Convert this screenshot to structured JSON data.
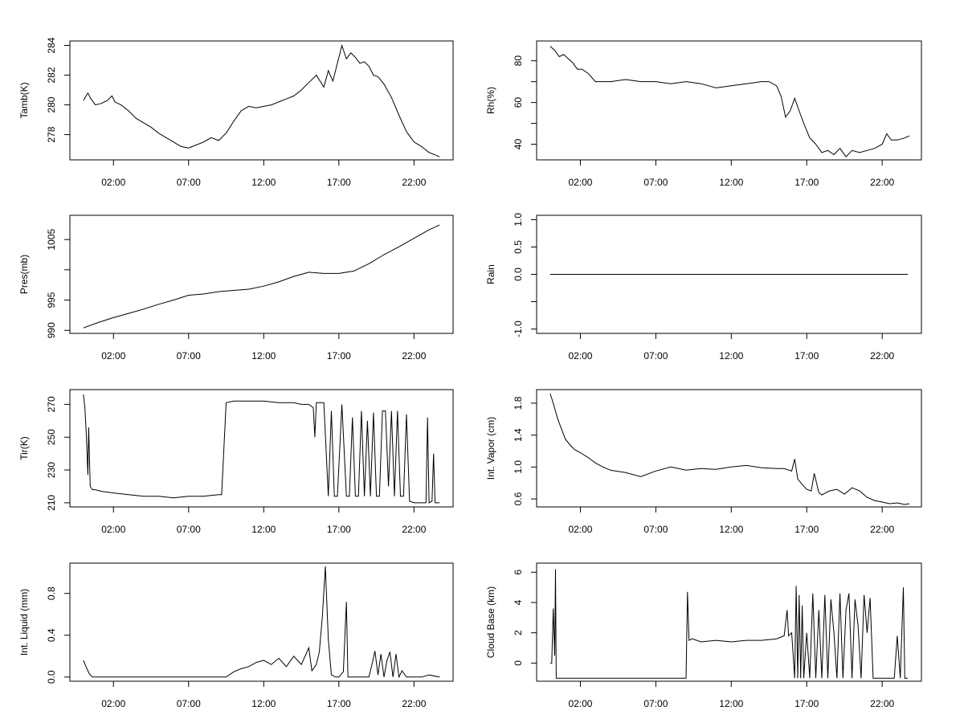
{
  "x_ticks": [
    "02:00",
    "07:00",
    "12:00",
    "17:00",
    "22:00"
  ],
  "chart_data": [
    {
      "id": "tamb",
      "type": "line",
      "ylabel": "Tamb(K)",
      "xlim": [
        -0.9,
        24.6
      ],
      "ylim": [
        276.3,
        284.3
      ],
      "yticks": [
        278,
        280,
        282,
        284
      ],
      "ytick_labels": [
        "278",
        "280",
        "282",
        "284"
      ],
      "series": [
        {
          "name": "Tamb",
          "x": [
            0.0,
            0.3,
            0.5,
            0.8,
            1.2,
            1.6,
            1.9,
            2.1,
            2.5,
            3.0,
            3.5,
            4.0,
            4.5,
            5.0,
            5.5,
            6.0,
            6.5,
            7.0,
            7.5,
            8.0,
            8.5,
            9.0,
            9.5,
            10.0,
            10.5,
            11.0,
            11.5,
            12.0,
            12.5,
            13.0,
            13.5,
            14.0,
            14.5,
            15.0,
            15.5,
            16.0,
            16.3,
            16.6,
            16.9,
            17.2,
            17.5,
            17.8,
            18.1,
            18.4,
            18.7,
            19.0,
            19.3,
            19.6,
            20.0,
            20.5,
            21.0,
            21.5,
            22.0,
            22.5,
            23.0,
            23.5,
            23.7
          ],
          "values": [
            280.3,
            280.8,
            280.4,
            280.0,
            280.1,
            280.3,
            280.6,
            280.2,
            280.0,
            279.6,
            279.1,
            278.8,
            278.5,
            278.1,
            277.8,
            277.5,
            277.2,
            277.1,
            277.3,
            277.5,
            277.8,
            277.6,
            278.1,
            278.9,
            279.6,
            279.9,
            279.8,
            279.9,
            280.0,
            280.2,
            280.4,
            280.6,
            281.0,
            281.5,
            282.0,
            281.2,
            282.3,
            281.6,
            282.8,
            284.0,
            283.1,
            283.5,
            283.2,
            282.8,
            282.9,
            282.6,
            282.0,
            281.9,
            281.4,
            280.5,
            279.3,
            278.2,
            277.5,
            277.2,
            276.8,
            276.6,
            276.5
          ]
        }
      ]
    },
    {
      "id": "rh",
      "type": "line",
      "ylabel": "Rh(%)",
      "xlim": [
        -0.9,
        24.6
      ],
      "ylim": [
        32.5,
        89.5
      ],
      "yticks": [
        40,
        50,
        60,
        70,
        80
      ],
      "ytick_labels": [
        "40",
        "",
        "60",
        "",
        "80"
      ],
      "series": [
        {
          "name": "Rh",
          "x": [
            0.0,
            0.3,
            0.6,
            0.9,
            1.2,
            1.5,
            1.8,
            2.1,
            2.5,
            3.0,
            3.5,
            4.0,
            5.0,
            6.0,
            7.0,
            8.0,
            9.0,
            10.0,
            11.0,
            12.0,
            13.0,
            14.0,
            14.5,
            15.0,
            15.3,
            15.6,
            15.9,
            16.2,
            16.5,
            16.8,
            17.2,
            17.6,
            18.0,
            18.4,
            18.8,
            19.2,
            19.6,
            20.0,
            20.5,
            21.0,
            21.5,
            22.0,
            22.3,
            22.6,
            23.0,
            23.5,
            23.8
          ],
          "values": [
            87,
            85,
            82,
            83,
            81,
            79,
            76,
            76,
            74,
            70,
            70,
            70,
            71,
            70,
            70,
            69,
            70,
            69,
            67,
            68,
            69,
            70,
            70,
            68,
            63,
            53,
            56,
            62,
            56,
            50,
            43,
            40,
            36,
            37,
            35,
            38,
            34,
            37,
            36,
            37,
            38,
            40,
            45,
            42,
            42,
            43,
            44
          ]
        }
      ]
    },
    {
      "id": "pres",
      "type": "line",
      "ylabel": "Pres(mb)",
      "xlim": [
        -0.9,
        24.6
      ],
      "ylim": [
        989.5,
        1009.0
      ],
      "yticks": [
        990,
        995,
        1000,
        1005
      ],
      "ytick_labels": [
        "990",
        "995",
        "",
        "1005"
      ],
      "series": [
        {
          "name": "Pres",
          "x": [
            0.0,
            1.0,
            2.0,
            3.0,
            4.0,
            5.0,
            6.0,
            7.0,
            8.0,
            9.0,
            10.0,
            11.0,
            12.0,
            13.0,
            14.0,
            15.0,
            16.0,
            17.0,
            18.0,
            19.0,
            20.0,
            21.0,
            22.0,
            23.0,
            23.7
          ],
          "values": [
            990.4,
            991.3,
            992.1,
            992.8,
            993.5,
            994.3,
            995.0,
            995.8,
            996.0,
            996.4,
            996.6,
            996.8,
            997.3,
            998.0,
            998.9,
            999.6,
            999.4,
            999.4,
            999.8,
            1001.0,
            1002.5,
            1003.8,
            1005.2,
            1006.6,
            1007.4
          ]
        }
      ]
    },
    {
      "id": "rain",
      "type": "line",
      "ylabel": "Rain",
      "xlim": [
        -0.9,
        24.6
      ],
      "ylim": [
        -1.08,
        1.08
      ],
      "yticks": [
        -1.0,
        -0.5,
        0.0,
        0.5,
        1.0
      ],
      "ytick_labels": [
        "-1.0",
        "",
        "0.0",
        "0.5",
        "1.0"
      ],
      "series": [
        {
          "name": "Rain",
          "x": [
            0.0,
            23.7
          ],
          "values": [
            0.0,
            0.0
          ]
        }
      ]
    },
    {
      "id": "tir",
      "type": "line",
      "ylabel": "Tir(K)",
      "xlim": [
        -0.9,
        24.6
      ],
      "ylim": [
        207.5,
        279.0
      ],
      "yticks": [
        210,
        230,
        250,
        270
      ],
      "ytick_labels": [
        "210",
        "230",
        "250",
        "270"
      ],
      "series": [
        {
          "name": "Tir",
          "x": [
            0.0,
            0.1,
            0.2,
            0.3,
            0.35,
            0.45,
            0.6,
            0.8,
            1.2,
            2.0,
            3.0,
            4.0,
            5.0,
            6.0,
            7.0,
            8.0,
            9.0,
            9.2,
            9.5,
            10.0,
            11.0,
            12.0,
            13.0,
            14.0,
            14.5,
            15.0,
            15.3,
            15.4,
            15.5,
            15.8,
            16.0,
            16.3,
            16.5,
            16.7,
            16.9,
            17.2,
            17.5,
            17.7,
            17.9,
            18.1,
            18.3,
            18.5,
            18.7,
            18.9,
            19.1,
            19.3,
            19.5,
            19.7,
            19.9,
            20.1,
            20.3,
            20.5,
            20.7,
            20.9,
            21.1,
            21.3,
            21.5,
            21.7,
            22.0,
            22.5,
            22.8,
            22.9,
            23.0,
            23.2,
            23.3,
            23.4,
            23.7
          ],
          "values": [
            276,
            268,
            250,
            227,
            256,
            220,
            218,
            218,
            217,
            216,
            215,
            214,
            214,
            213,
            214,
            214,
            215,
            215,
            271,
            272,
            272,
            272,
            271,
            271,
            270,
            270,
            268,
            250,
            271,
            271,
            271,
            214,
            266,
            214,
            214,
            270,
            214,
            214,
            262,
            214,
            214,
            266,
            214,
            260,
            214,
            265,
            214,
            214,
            266,
            266,
            220,
            266,
            214,
            266,
            214,
            214,
            264,
            211,
            210,
            210,
            210,
            262,
            210,
            211,
            240,
            210,
            210
          ]
        }
      ]
    },
    {
      "id": "vapor",
      "type": "line",
      "ylabel": "Int. Vapor (cm)",
      "xlim": [
        -0.9,
        24.6
      ],
      "ylim": [
        0.5,
        1.97
      ],
      "yticks": [
        0.6,
        1.0,
        1.4,
        1.8
      ],
      "ytick_labels": [
        "0.6",
        "1.0",
        "1.4",
        "1.8"
      ],
      "series": [
        {
          "name": "Int. Vapor",
          "x": [
            0.0,
            0.2,
            0.5,
            0.8,
            1.0,
            1.3,
            1.6,
            2.0,
            2.5,
            3.0,
            3.5,
            4.0,
            5.0,
            6.0,
            7.0,
            8.0,
            9.0,
            10.0,
            11.0,
            12.0,
            13.0,
            14.0,
            15.0,
            15.5,
            16.0,
            16.2,
            16.4,
            16.7,
            17.0,
            17.3,
            17.5,
            17.8,
            18.0,
            18.5,
            19.0,
            19.5,
            20.0,
            20.5,
            21.0,
            21.5,
            22.0,
            22.5,
            23.0,
            23.5,
            23.8
          ],
          "values": [
            1.92,
            1.8,
            1.6,
            1.45,
            1.35,
            1.28,
            1.22,
            1.18,
            1.12,
            1.05,
            1.0,
            0.96,
            0.93,
            0.88,
            0.95,
            1.0,
            0.96,
            0.98,
            0.97,
            1.0,
            1.02,
            0.99,
            0.98,
            0.98,
            0.95,
            1.1,
            0.85,
            0.78,
            0.72,
            0.7,
            0.92,
            0.68,
            0.65,
            0.7,
            0.72,
            0.66,
            0.74,
            0.7,
            0.62,
            0.58,
            0.56,
            0.54,
            0.55,
            0.53,
            0.54
          ]
        }
      ]
    },
    {
      "id": "liquid",
      "type": "line",
      "ylabel": "Int. Liquid (mm)",
      "xlim": [
        -0.9,
        24.6
      ],
      "ylim": [
        -0.04,
        1.09
      ],
      "yticks": [
        0.0,
        0.4,
        0.8
      ],
      "ytick_labels": [
        "0.0",
        "0.4",
        "0.8"
      ],
      "series": [
        {
          "name": "Int. Liquid",
          "x": [
            0.0,
            0.2,
            0.4,
            0.6,
            1.0,
            2.0,
            4.0,
            6.0,
            8.0,
            9.0,
            9.5,
            10.0,
            10.5,
            11.0,
            11.5,
            12.0,
            12.5,
            13.0,
            13.5,
            14.0,
            14.5,
            15.0,
            15.2,
            15.5,
            15.7,
            15.9,
            16.1,
            16.3,
            16.5,
            16.8,
            17.0,
            17.3,
            17.5,
            17.6,
            17.8,
            18.0,
            18.5,
            19.0,
            19.2,
            19.4,
            19.6,
            19.8,
            20.0,
            20.2,
            20.4,
            20.6,
            20.8,
            21.0,
            21.2,
            21.5,
            22.0,
            22.5,
            23.0,
            23.7
          ],
          "values": [
            0.16,
            0.09,
            0.03,
            0.0,
            0.0,
            0.0,
            0.0,
            0.0,
            0.0,
            0.0,
            0.0,
            0.05,
            0.08,
            0.1,
            0.14,
            0.16,
            0.12,
            0.18,
            0.1,
            0.2,
            0.12,
            0.28,
            0.06,
            0.12,
            0.24,
            0.58,
            1.06,
            0.36,
            0.02,
            0.0,
            0.0,
            0.05,
            0.72,
            0.0,
            0.0,
            0.0,
            0.0,
            0.0,
            0.12,
            0.25,
            0.02,
            0.22,
            0.0,
            0.16,
            0.24,
            0.0,
            0.22,
            0.0,
            0.06,
            0.0,
            0.0,
            0.0,
            0.02,
            0.0
          ]
        }
      ]
    },
    {
      "id": "cloudbase",
      "type": "line",
      "ylabel": "Cloud Base (km)",
      "xlim": [
        -0.9,
        24.6
      ],
      "ylim": [
        -1.2,
        6.6
      ],
      "yticks": [
        0,
        2,
        4,
        6
      ],
      "ytick_labels": [
        "0",
        "2",
        "4",
        "6"
      ],
      "series": [
        {
          "name": "Cloud Base",
          "x": [
            0.0,
            0.1,
            0.2,
            0.3,
            0.35,
            0.4,
            0.45,
            0.5,
            0.55,
            0.7,
            1.0,
            2.0,
            4.0,
            6.0,
            8.0,
            9.0,
            9.1,
            9.2,
            9.4,
            10.0,
            11.0,
            12.0,
            13.0,
            14.0,
            15.0,
            15.5,
            15.7,
            15.8,
            16.0,
            16.2,
            16.3,
            16.4,
            16.5,
            16.6,
            16.7,
            16.8,
            17.0,
            17.2,
            17.4,
            17.6,
            17.8,
            18.0,
            18.2,
            18.4,
            18.6,
            18.8,
            19.0,
            19.2,
            19.4,
            19.6,
            19.8,
            20.0,
            20.2,
            20.4,
            20.6,
            20.8,
            21.0,
            21.2,
            21.4,
            21.6,
            21.8,
            22.0,
            22.3,
            22.8,
            23.0,
            23.2,
            23.4,
            23.5,
            23.7
          ],
          "values": [
            0.0,
            0.0,
            3.6,
            0.5,
            6.2,
            -1,
            -1,
            -1,
            -1,
            -1,
            -1,
            -1,
            -1,
            -1,
            -1,
            -1,
            4.7,
            1.5,
            1.6,
            1.4,
            1.5,
            1.4,
            1.5,
            1.5,
            1.6,
            1.8,
            3.5,
            1.8,
            2.0,
            -1,
            5.1,
            -1,
            4.5,
            -1,
            3.8,
            -1,
            2.0,
            -1,
            4.6,
            -1,
            3.5,
            -1,
            4.5,
            -1,
            4.2,
            2.0,
            -1,
            4.6,
            -1,
            3.5,
            4.6,
            -1,
            4.2,
            2.5,
            -1,
            4.5,
            2.0,
            4.3,
            -1,
            -1,
            -1,
            -1,
            -1,
            -1,
            1.8,
            -1,
            5.0,
            -1,
            -1
          ]
        }
      ]
    }
  ]
}
